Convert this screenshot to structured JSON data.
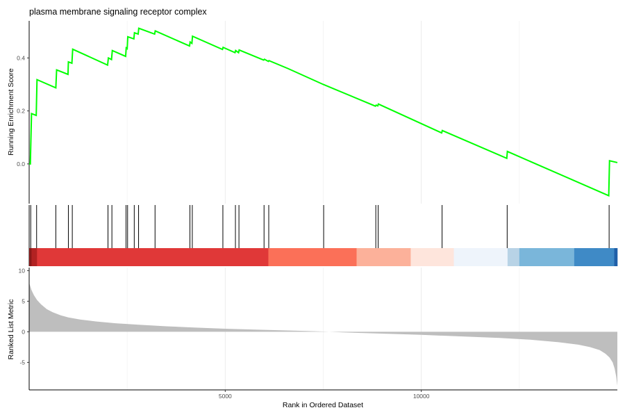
{
  "chart_data": {
    "type": "line",
    "title": "plasma membrane signaling receptor complex",
    "xlabel": "Rank in Ordered Dataset",
    "x_total": 15000,
    "xlim": [
      0,
      15000
    ],
    "x_ticks": [
      5000,
      10000
    ],
    "x_tick_labels": [
      "5000",
      "10000"
    ],
    "grid": "vertical only",
    "panels": [
      {
        "name": "running-score",
        "ylabel": "Running Enrichment Score",
        "ylim": [
          -0.15,
          0.54
        ],
        "y_ticks": [
          0.0,
          0.2,
          0.4
        ],
        "y_tick_labels": [
          "0.0",
          "0.2",
          "0.4"
        ],
        "series": [
          {
            "color": "#00ff00",
            "points": [
              [
                0,
                0
              ],
              [
                30,
                0.0
              ],
              [
                60,
                0.19
              ],
              [
                180,
                0.183
              ],
              [
                200,
                0.318
              ],
              [
                680,
                0.287
              ],
              [
                700,
                0.355
              ],
              [
                990,
                0.338
              ],
              [
                1000,
                0.385
              ],
              [
                1090,
                0.38
              ],
              [
                1110,
                0.433
              ],
              [
                2000,
                0.373
              ],
              [
                2020,
                0.4
              ],
              [
                2100,
                0.394
              ],
              [
                2120,
                0.428
              ],
              [
                2460,
                0.406
              ],
              [
                2475,
                0.438
              ],
              [
                2500,
                0.435
              ],
              [
                2515,
                0.48
              ],
              [
                2670,
                0.472
              ],
              [
                2685,
                0.495
              ],
              [
                2780,
                0.49
              ],
              [
                2795,
                0.512
              ],
              [
                3200,
                0.49
              ],
              [
                3215,
                0.502
              ],
              [
                4090,
                0.445
              ],
              [
                4105,
                0.46
              ],
              [
                4150,
                0.455
              ],
              [
                4165,
                0.482
              ],
              [
                4930,
                0.432
              ],
              [
                4945,
                0.44
              ],
              [
                5250,
                0.42
              ],
              [
                5265,
                0.428
              ],
              [
                5340,
                0.42
              ],
              [
                5355,
                0.43
              ],
              [
                5980,
                0.392
              ],
              [
                6000,
                0.395
              ],
              [
                6100,
                0.387
              ],
              [
                6115,
                0.39
              ],
              [
                6600,
                0.36
              ],
              [
                7500,
                0.3
              ],
              [
                8830,
                0.218
              ],
              [
                8850,
                0.222
              ],
              [
                8890,
                0.219
              ],
              [
                8905,
                0.226
              ],
              [
                10520,
                0.117
              ],
              [
                10535,
                0.126
              ],
              [
                12180,
                0.021
              ],
              [
                12195,
                0.047
              ],
              [
                14780,
                -0.12
              ],
              [
                14800,
                0.012
              ],
              [
                15000,
                0.005
              ]
            ]
          }
        ]
      },
      {
        "name": "gene-hits",
        "hits": [
          40,
          190,
          680,
          1000,
          1100,
          2010,
          2110,
          2470,
          2510,
          2680,
          2790,
          3210,
          4100,
          4160,
          4940,
          5260,
          5350,
          5990,
          6110,
          7510,
          8840,
          8900,
          10530,
          12190,
          14790
        ]
      },
      {
        "name": "rank-color-bar",
        "segments": [
          {
            "from": 0,
            "to": 60,
            "color": "#8b1a1a"
          },
          {
            "from": 60,
            "to": 200,
            "color": "#b22222"
          },
          {
            "from": 200,
            "to": 6100,
            "color": "#e03838"
          },
          {
            "from": 6100,
            "to": 8350,
            "color": "#fb7058"
          },
          {
            "from": 8350,
            "to": 9730,
            "color": "#fcb19a"
          },
          {
            "from": 9730,
            "to": 10830,
            "color": "#fee5dc"
          },
          {
            "from": 10830,
            "to": 12200,
            "color": "#eef4fb"
          },
          {
            "from": 12200,
            "to": 12500,
            "color": "#b8d3e6"
          },
          {
            "from": 12500,
            "to": 13900,
            "color": "#7ab6da"
          },
          {
            "from": 13900,
            "to": 14920,
            "color": "#3f8ac6"
          },
          {
            "from": 14920,
            "to": 15000,
            "color": "#1f5fa8"
          }
        ]
      },
      {
        "name": "ranked-metric",
        "ylabel": "Ranked List Metric",
        "ylim": [
          -9.5,
          10.5
        ],
        "y_ticks": [
          10,
          5,
          0,
          -5
        ],
        "y_tick_labels": [
          "10",
          "5",
          "0",
          "-5"
        ],
        "fill_color": "#bebebe",
        "points": [
          [
            0,
            8.0
          ],
          [
            20,
            7.6
          ],
          [
            60,
            6.8
          ],
          [
            120,
            6.0
          ],
          [
            200,
            5.2
          ],
          [
            300,
            4.5
          ],
          [
            450,
            3.7
          ],
          [
            600,
            3.2
          ],
          [
            800,
            2.7
          ],
          [
            1000,
            2.35
          ],
          [
            1300,
            2.0
          ],
          [
            1700,
            1.7
          ],
          [
            2200,
            1.4
          ],
          [
            2800,
            1.15
          ],
          [
            3500,
            0.9
          ],
          [
            4200,
            0.7
          ],
          [
            5000,
            0.5
          ],
          [
            6000,
            0.32
          ],
          [
            7000,
            0.15
          ],
          [
            7500,
            0.05
          ],
          [
            8000,
            -0.1
          ],
          [
            9000,
            -0.3
          ],
          [
            10000,
            -0.5
          ],
          [
            11000,
            -0.75
          ],
          [
            12000,
            -1.0
          ],
          [
            12800,
            -1.3
          ],
          [
            13500,
            -1.7
          ],
          [
            14000,
            -2.1
          ],
          [
            14300,
            -2.5
          ],
          [
            14550,
            -3.0
          ],
          [
            14700,
            -3.6
          ],
          [
            14800,
            -4.2
          ],
          [
            14880,
            -5.0
          ],
          [
            14930,
            -6.0
          ],
          [
            14970,
            -7.3
          ],
          [
            14990,
            -8.3
          ],
          [
            15000,
            -8.8
          ]
        ]
      }
    ]
  }
}
